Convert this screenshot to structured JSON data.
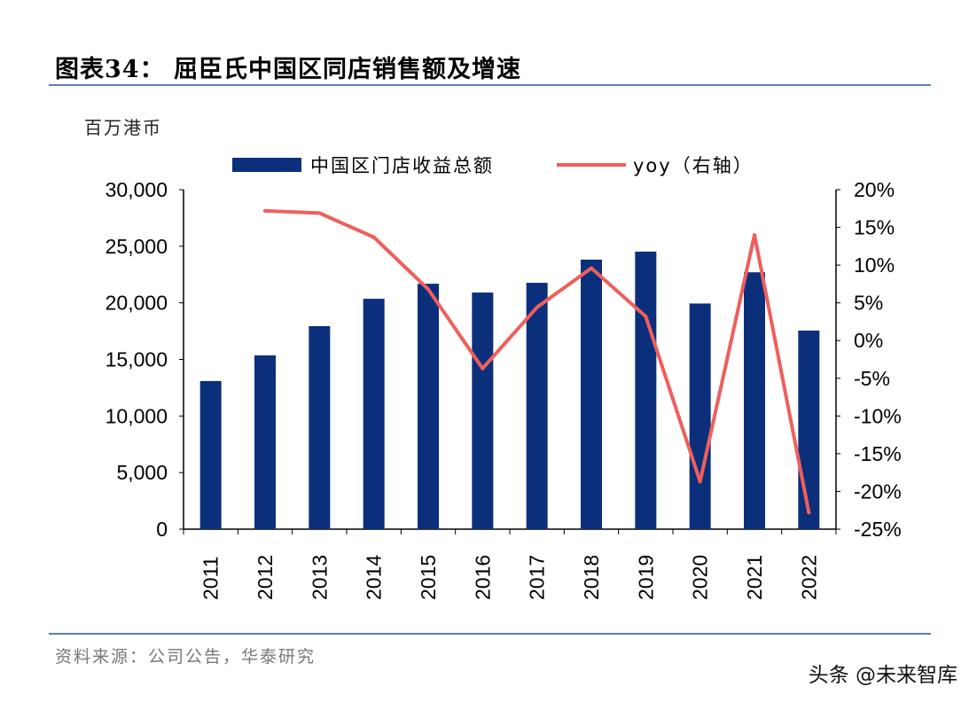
{
  "title": "图表34： 屈臣氏中国区同店销售额及增速",
  "unit_label": "百万港币",
  "source": "资料来源：公司公告，华泰研究",
  "watermark": "头条 @未来智库",
  "chart_data": {
    "type": "bar+line",
    "categories": [
      "2011",
      "2012",
      "2013",
      "2014",
      "2015",
      "2016",
      "2017",
      "2018",
      "2019",
      "2020",
      "2021",
      "2022"
    ],
    "series": [
      {
        "name": "中国区门店收益总额",
        "type": "bar",
        "axis": "left",
        "color": "#0b2f7a",
        "values": [
          13090,
          15360,
          17940,
          20360,
          21690,
          20910,
          21770,
          23820,
          24530,
          19940,
          22700,
          17550
        ]
      },
      {
        "name": "yoy（右轴）",
        "type": "line",
        "axis": "right",
        "color": "#ef5f5c",
        "values": [
          null,
          17.2,
          16.9,
          13.7,
          6.8,
          -3.7,
          4.4,
          9.6,
          3.2,
          -18.7,
          14.0,
          -22.8
        ]
      }
    ],
    "ylim_left": [
      0,
      30000
    ],
    "ylim_right": [
      -25,
      20
    ],
    "left_ticks": [
      "0",
      "5,000",
      "10,000",
      "15,000",
      "20,000",
      "25,000",
      "30,000"
    ],
    "right_ticks": [
      "-25%",
      "-20%",
      "-15%",
      "-10%",
      "-5%",
      "0%",
      "5%",
      "10%",
      "15%",
      "20%"
    ],
    "legend_position": "top",
    "grid": false
  }
}
